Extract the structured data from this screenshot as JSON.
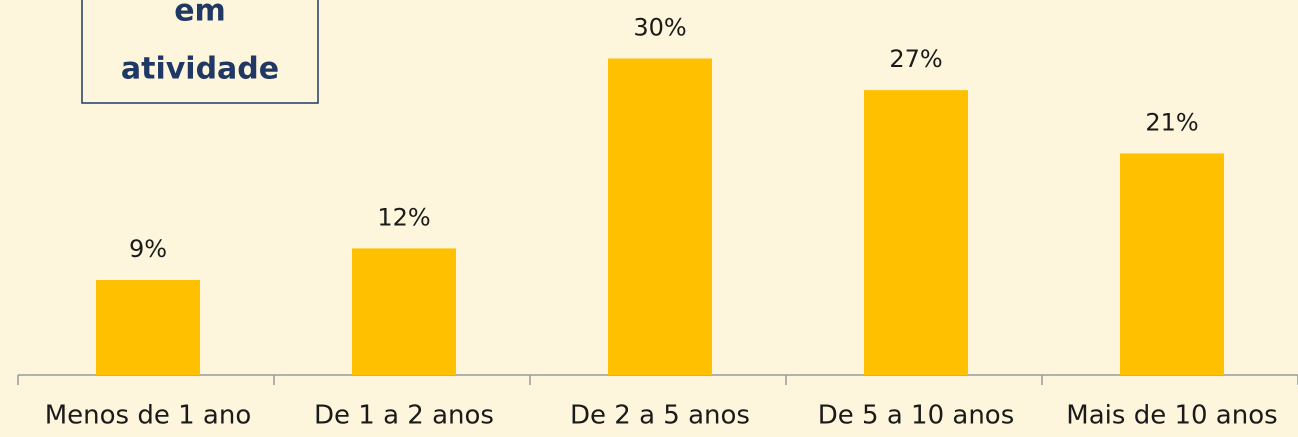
{
  "chart_data": {
    "type": "bar",
    "annotation": [
      "em",
      "atividade"
    ],
    "categories": [
      "Menos de 1 ano",
      "De 1 a 2 anos",
      "De 2 a 5 anos",
      "De 5 a 10 anos",
      "Mais de 10 anos"
    ],
    "values": [
      9,
      12,
      30,
      27,
      21
    ],
    "value_labels": [
      "9%",
      "12%",
      "30%",
      "27%",
      "21%"
    ],
    "color": "#ffc000"
  }
}
